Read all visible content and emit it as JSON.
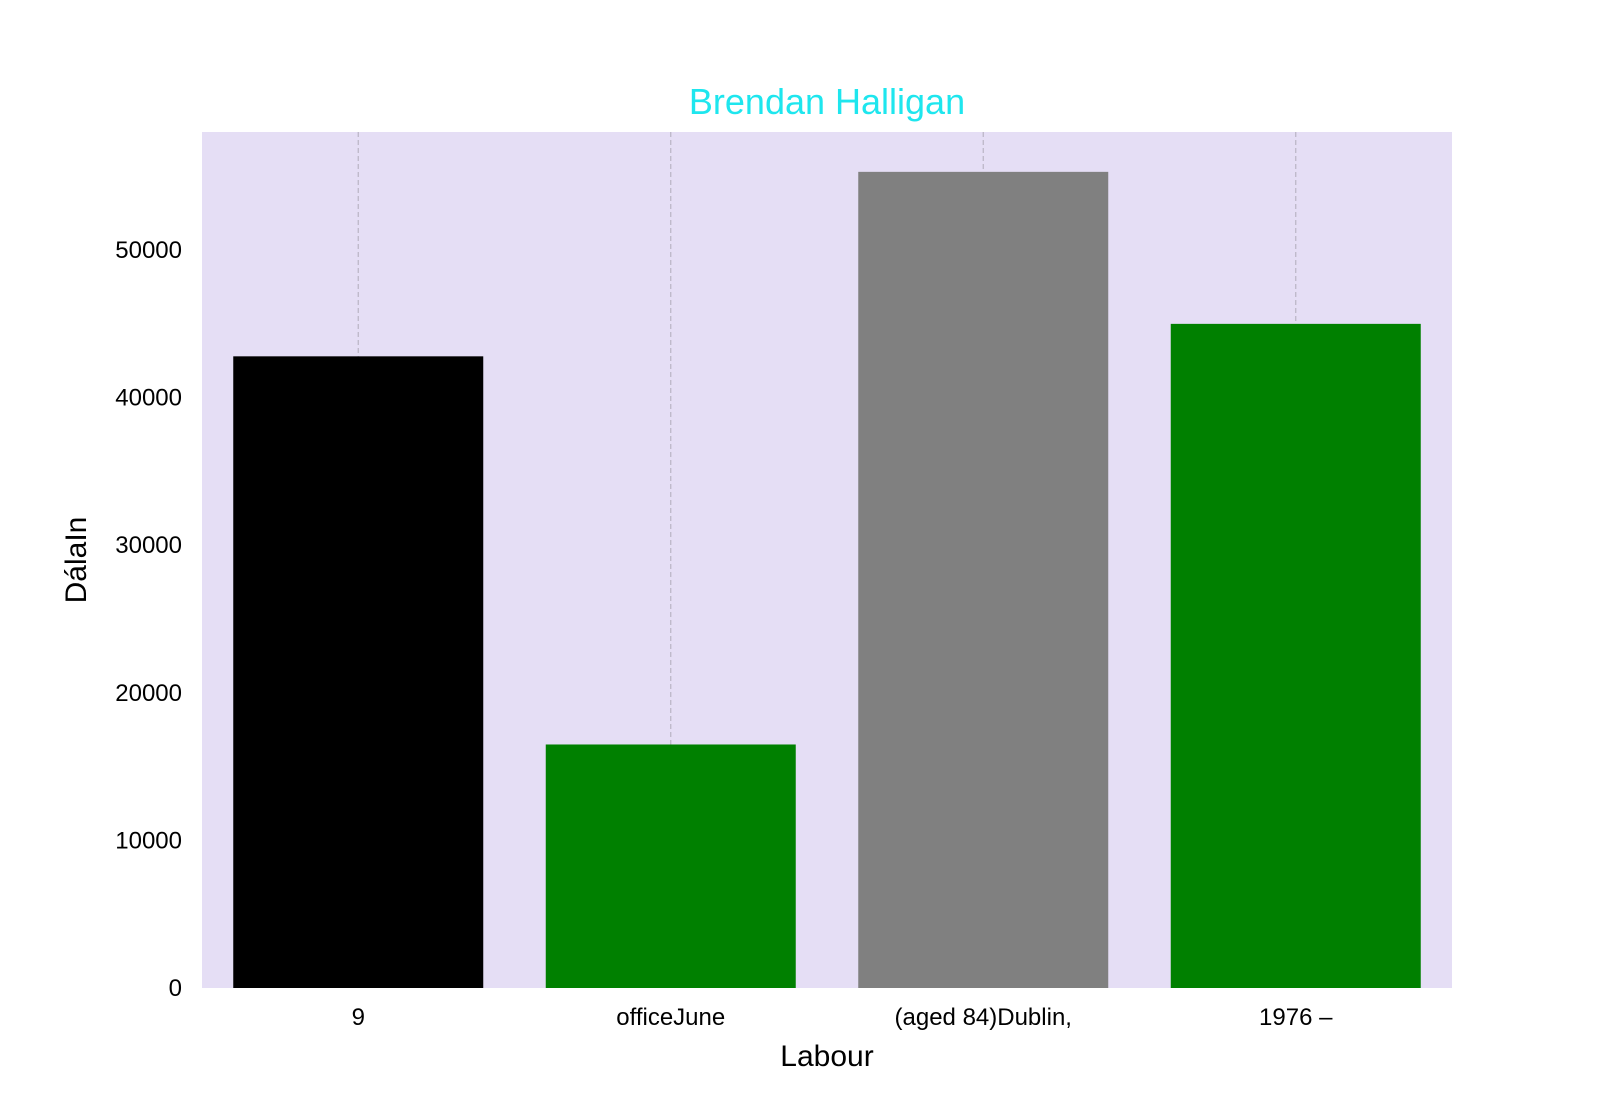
{
  "chart_data": {
    "type": "bar",
    "title": "Brendan Halligan",
    "xlabel": "Labour",
    "ylabel": "DálaIn",
    "categories": [
      "9",
      "officeJune",
      "(aged 84)Dublin,",
      "1976 –"
    ],
    "values": [
      42800,
      16500,
      55300,
      45000
    ],
    "bar_colors": [
      "#000000",
      "#008000",
      "#808080",
      "#008000"
    ],
    "ylim": [
      0,
      58000
    ],
    "yticks": [
      0,
      10000,
      20000,
      30000,
      40000,
      50000
    ],
    "ytick_labels": [
      "0",
      "10000",
      "20000",
      "30000",
      "40000",
      "50000"
    ],
    "grid": "vertical dashed",
    "legend": "none",
    "colors": {
      "title": "#1ee6ee",
      "plot_background": "#e5def5",
      "grid": "#b9b4c4"
    }
  }
}
